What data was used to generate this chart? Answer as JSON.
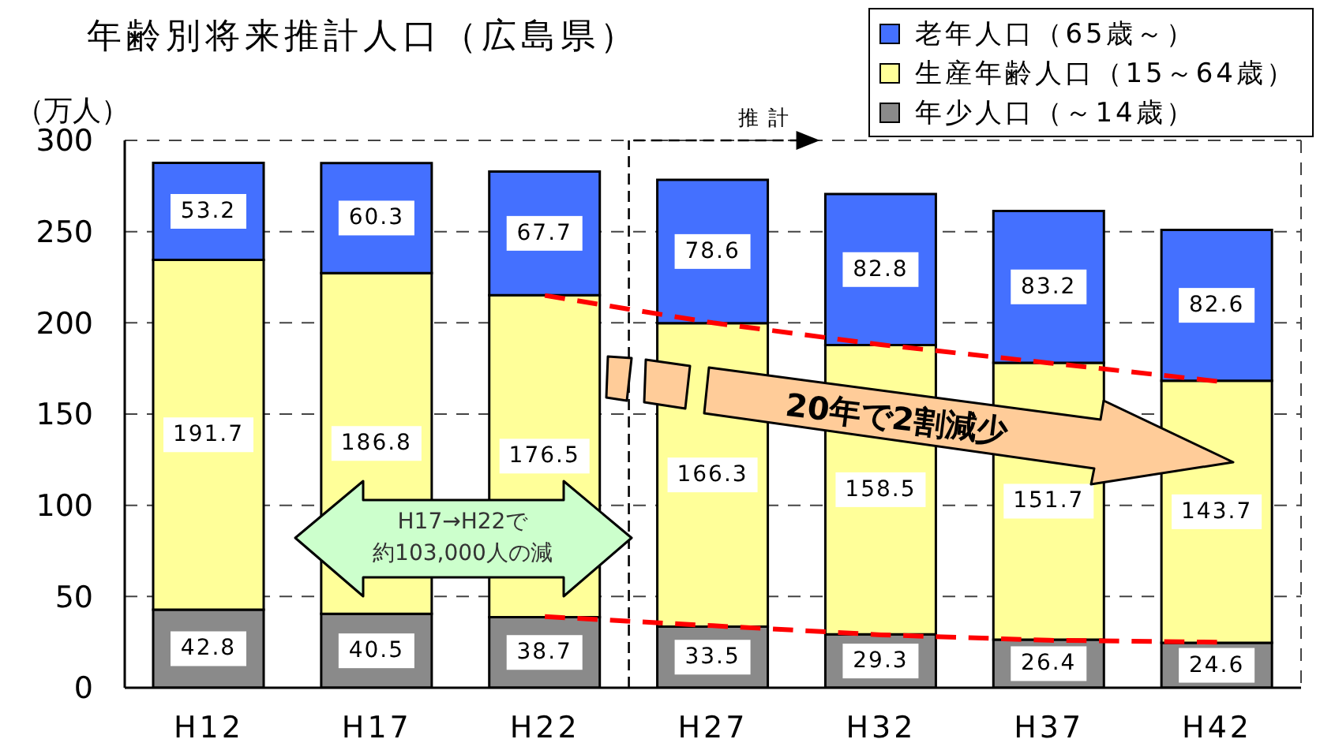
{
  "chart_data": {
    "type": "bar",
    "title": "年齢別将来推計人口（広島県）",
    "ylabel": "（万人）",
    "categories": [
      "H12",
      "H17",
      "H22",
      "H27",
      "H32",
      "H37",
      "H42"
    ],
    "stacked": true,
    "series": [
      {
        "name": "年少人口（～14歳）",
        "color": "#8a8a8a",
        "values": [
          42.8,
          40.5,
          38.7,
          33.5,
          29.3,
          26.4,
          24.6
        ]
      },
      {
        "name": "生産年齢人口（15～64歳）",
        "color": "#ffff99",
        "values": [
          191.7,
          186.8,
          176.5,
          166.3,
          158.5,
          151.7,
          143.7
        ]
      },
      {
        "name": "老年人口（65歳～）",
        "color": "#4470ff",
        "values": [
          53.2,
          60.3,
          67.7,
          78.6,
          82.8,
          83.2,
          82.6
        ]
      },
      {
        "type": "line",
        "color": "#ff0000",
        "line_style": "dashed",
        "data_labels": false,
        "values": [
          null,
          null,
          215,
          200,
          188,
          178,
          168
        ]
      },
      {
        "type": "line",
        "color": "#ff0000",
        "line_style": "dashed",
        "data_labels": false,
        "values": [
          null,
          null,
          39,
          34,
          29,
          26,
          25
        ]
      }
    ],
    "ylim": [
      0,
      300
    ],
    "yticks": [
      0,
      50,
      100,
      150,
      200,
      250,
      300
    ],
    "grid": "y",
    "legend": "top right",
    "data_labels": true,
    "ref_lines": [
      {
        "axis": "x",
        "value": "H27",
        "label": "推計",
        "line_style": "dashed",
        "color": "#000000"
      }
    ],
    "annotations": [
      "H17→H22で",
      "約103,000人の減",
      "20年で2割減少"
    ]
  }
}
